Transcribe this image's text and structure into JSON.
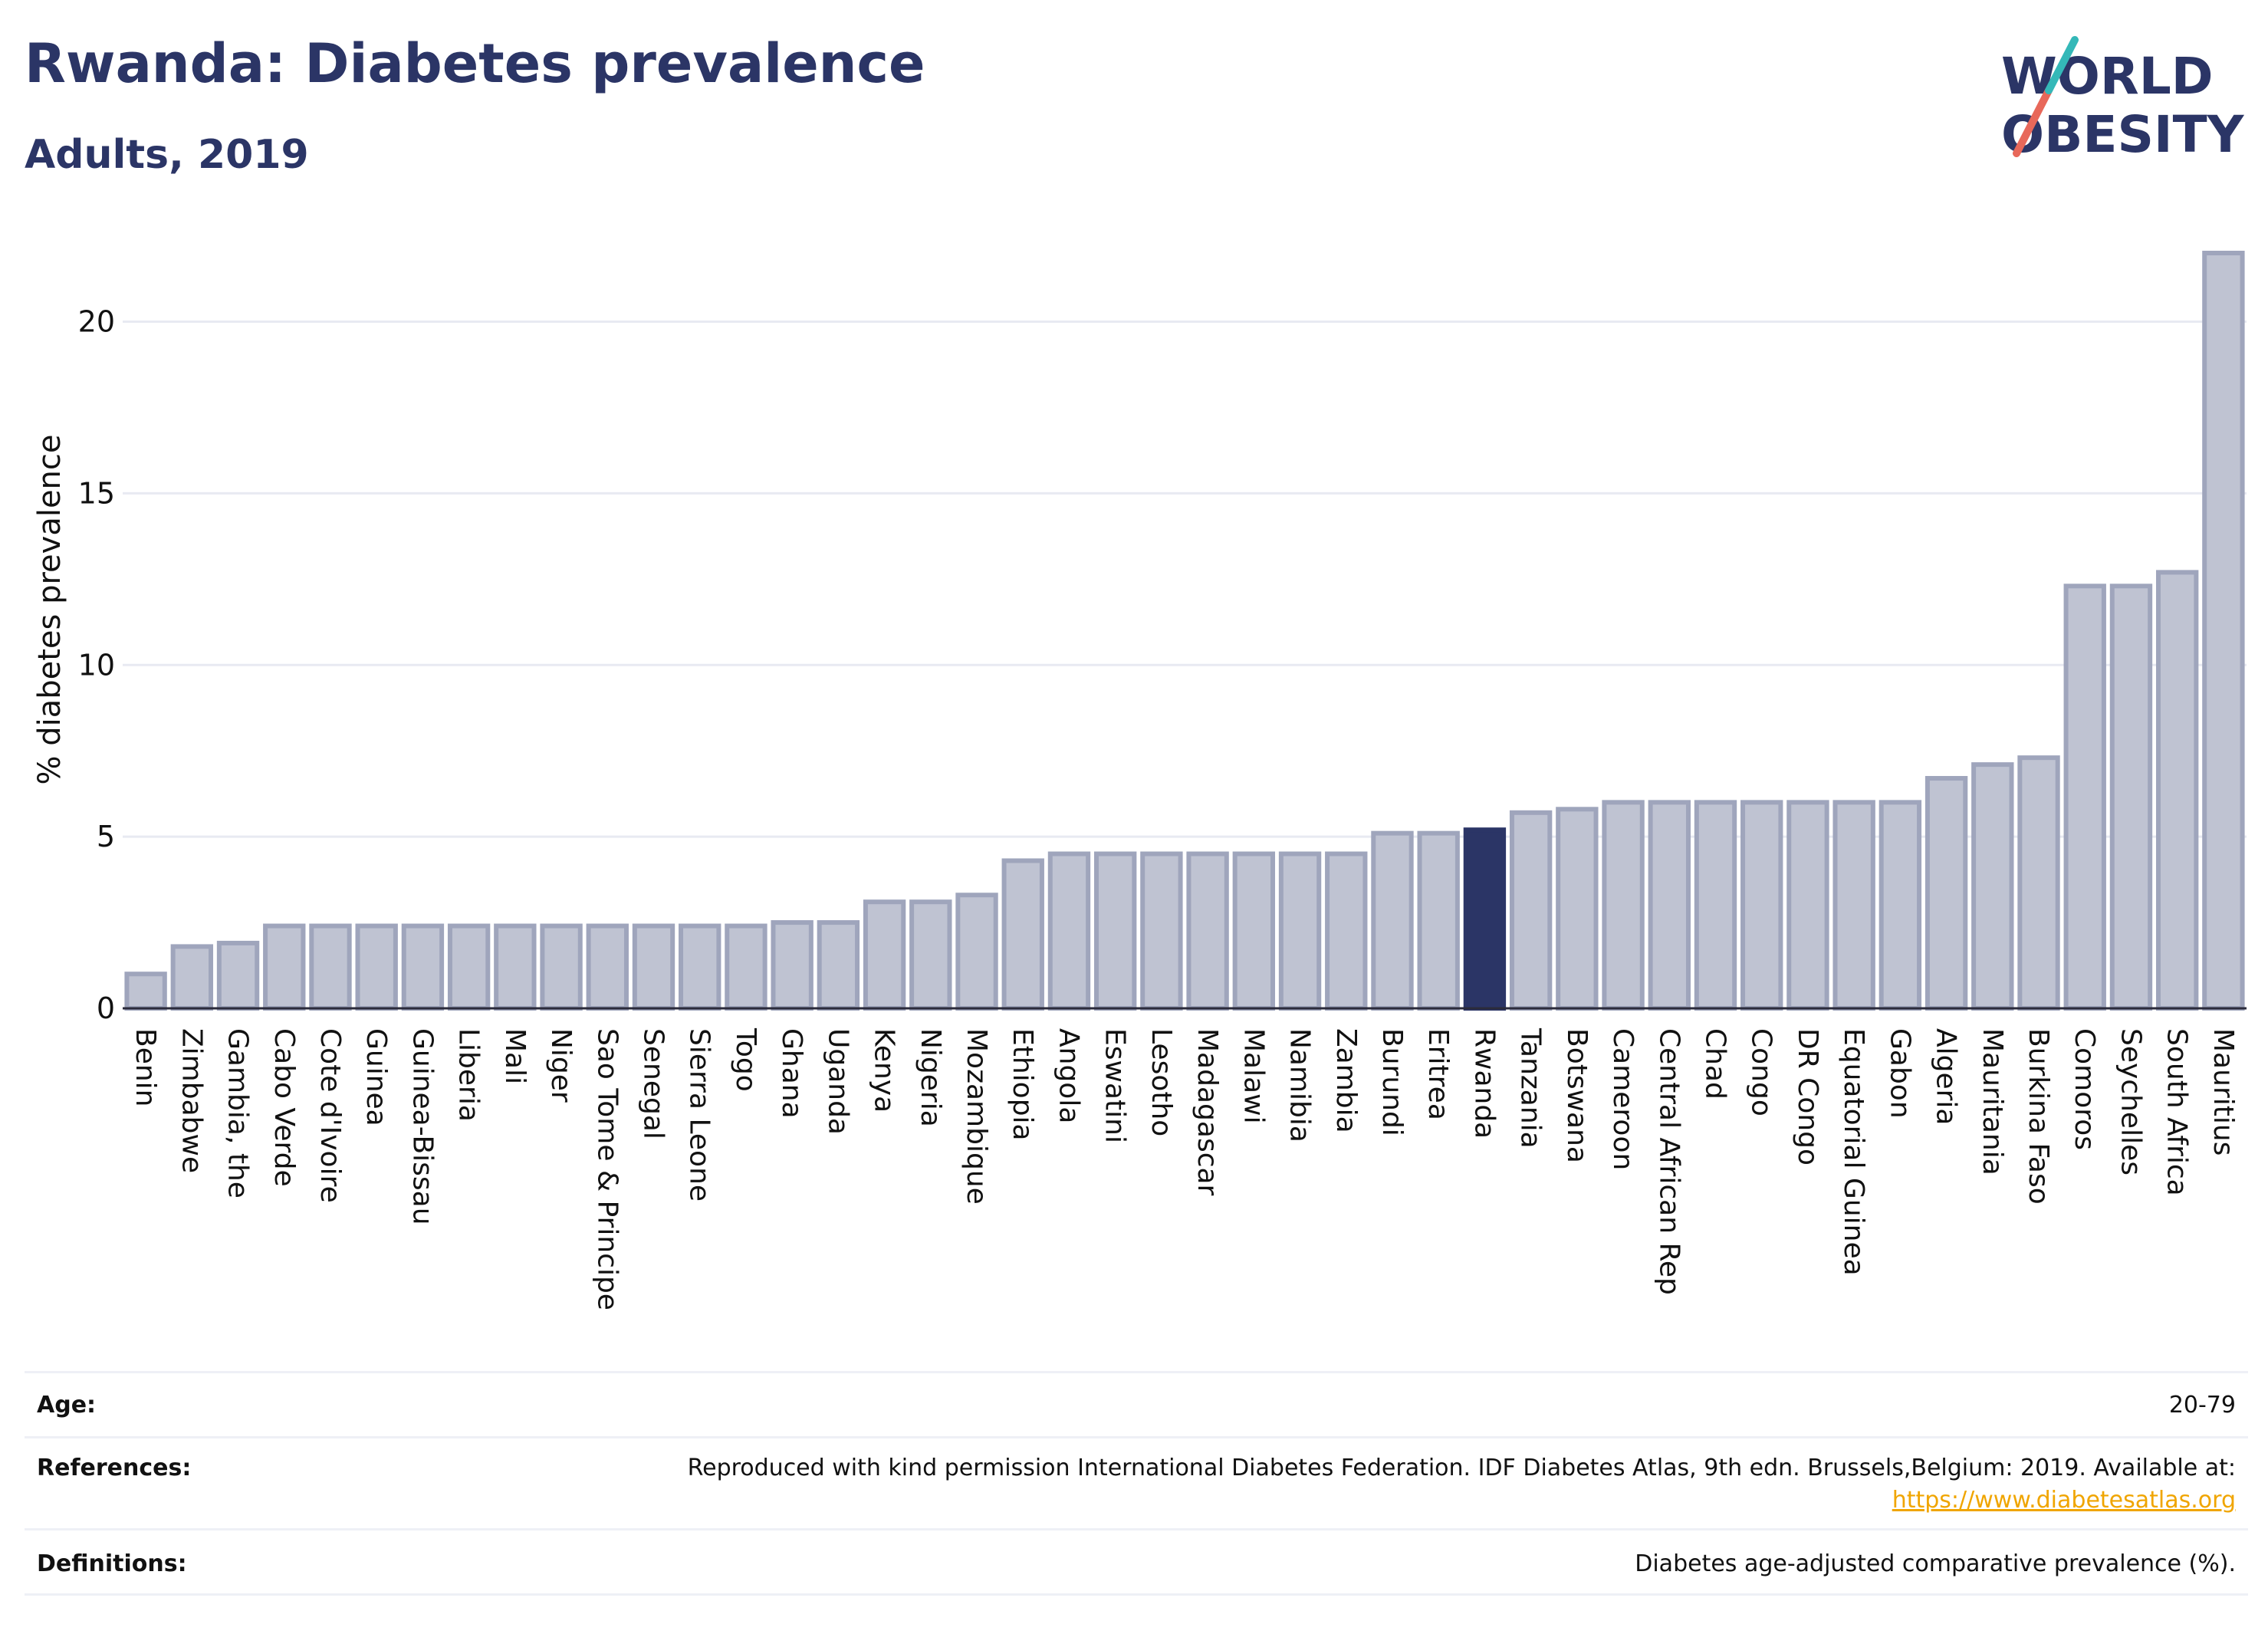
{
  "header": {
    "title": "Rwanda: Diabetes prevalence",
    "subtitle": "Adults, 2019"
  },
  "logo": {
    "line1": "WORLD",
    "line2": "OBESITY"
  },
  "colors": {
    "bar": "#bfc3d2",
    "bar_stroke": "#9fa5bc",
    "highlight": "#2b3566",
    "title": "#2b3566",
    "grid": "#e8eaf2",
    "link": "#f0a500"
  },
  "chart_data": {
    "type": "bar",
    "title": "Rwanda: Diabetes prevalence",
    "subtitle": "Adults, 2019",
    "ylabel": "% diabetes prevalence",
    "xlabel": "",
    "ylim": [
      0,
      22
    ],
    "yticks": [
      0,
      5,
      10,
      15,
      20
    ],
    "grid": true,
    "highlight": "Rwanda",
    "categories": [
      "Benin",
      "Zimbabwe",
      "Gambia, the",
      "Cabo Verde",
      "Cote d'Ivoire",
      "Guinea",
      "Guinea-Bissau",
      "Liberia",
      "Mali",
      "Niger",
      "Sao Tome & Principe",
      "Senegal",
      "Sierra Leone",
      "Togo",
      "Ghana",
      "Uganda",
      "Kenya",
      "Nigeria",
      "Mozambique",
      "Ethiopia",
      "Angola",
      "Eswatini",
      "Lesotho",
      "Madagascar",
      "Malawi",
      "Namibia",
      "Zambia",
      "Burundi",
      "Eritrea",
      "Rwanda",
      "Tanzania",
      "Botswana",
      "Cameroon",
      "Central African Rep",
      "Chad",
      "Congo",
      "DR Congo",
      "Equatorial Guinea",
      "Gabon",
      "Algeria",
      "Mauritania",
      "Burkina Faso",
      "Comoros",
      "Seychelles",
      "South Africa",
      "Mauritius"
    ],
    "values": [
      1.0,
      1.8,
      1.9,
      2.4,
      2.4,
      2.4,
      2.4,
      2.4,
      2.4,
      2.4,
      2.4,
      2.4,
      2.4,
      2.4,
      2.5,
      2.5,
      3.1,
      3.1,
      3.3,
      4.3,
      4.5,
      4.5,
      4.5,
      4.5,
      4.5,
      4.5,
      4.5,
      5.1,
      5.1,
      5.2,
      5.7,
      5.8,
      6.0,
      6.0,
      6.0,
      6.0,
      6.0,
      6.0,
      6.0,
      6.7,
      7.1,
      7.3,
      12.3,
      12.3,
      12.7,
      22.0
    ]
  },
  "meta": {
    "age_label": "Age:",
    "age_value": "20-79",
    "references_label": "References:",
    "references_text": "Reproduced with kind permission International Diabetes Federation. IDF Diabetes Atlas, 9th edn. Brussels,Belgium: 2019. Available at:",
    "references_link": "https://www.diabetesatlas.org",
    "definitions_label": "Definitions:",
    "definitions_value": "Diabetes age-adjusted comparative prevalence (%)."
  }
}
